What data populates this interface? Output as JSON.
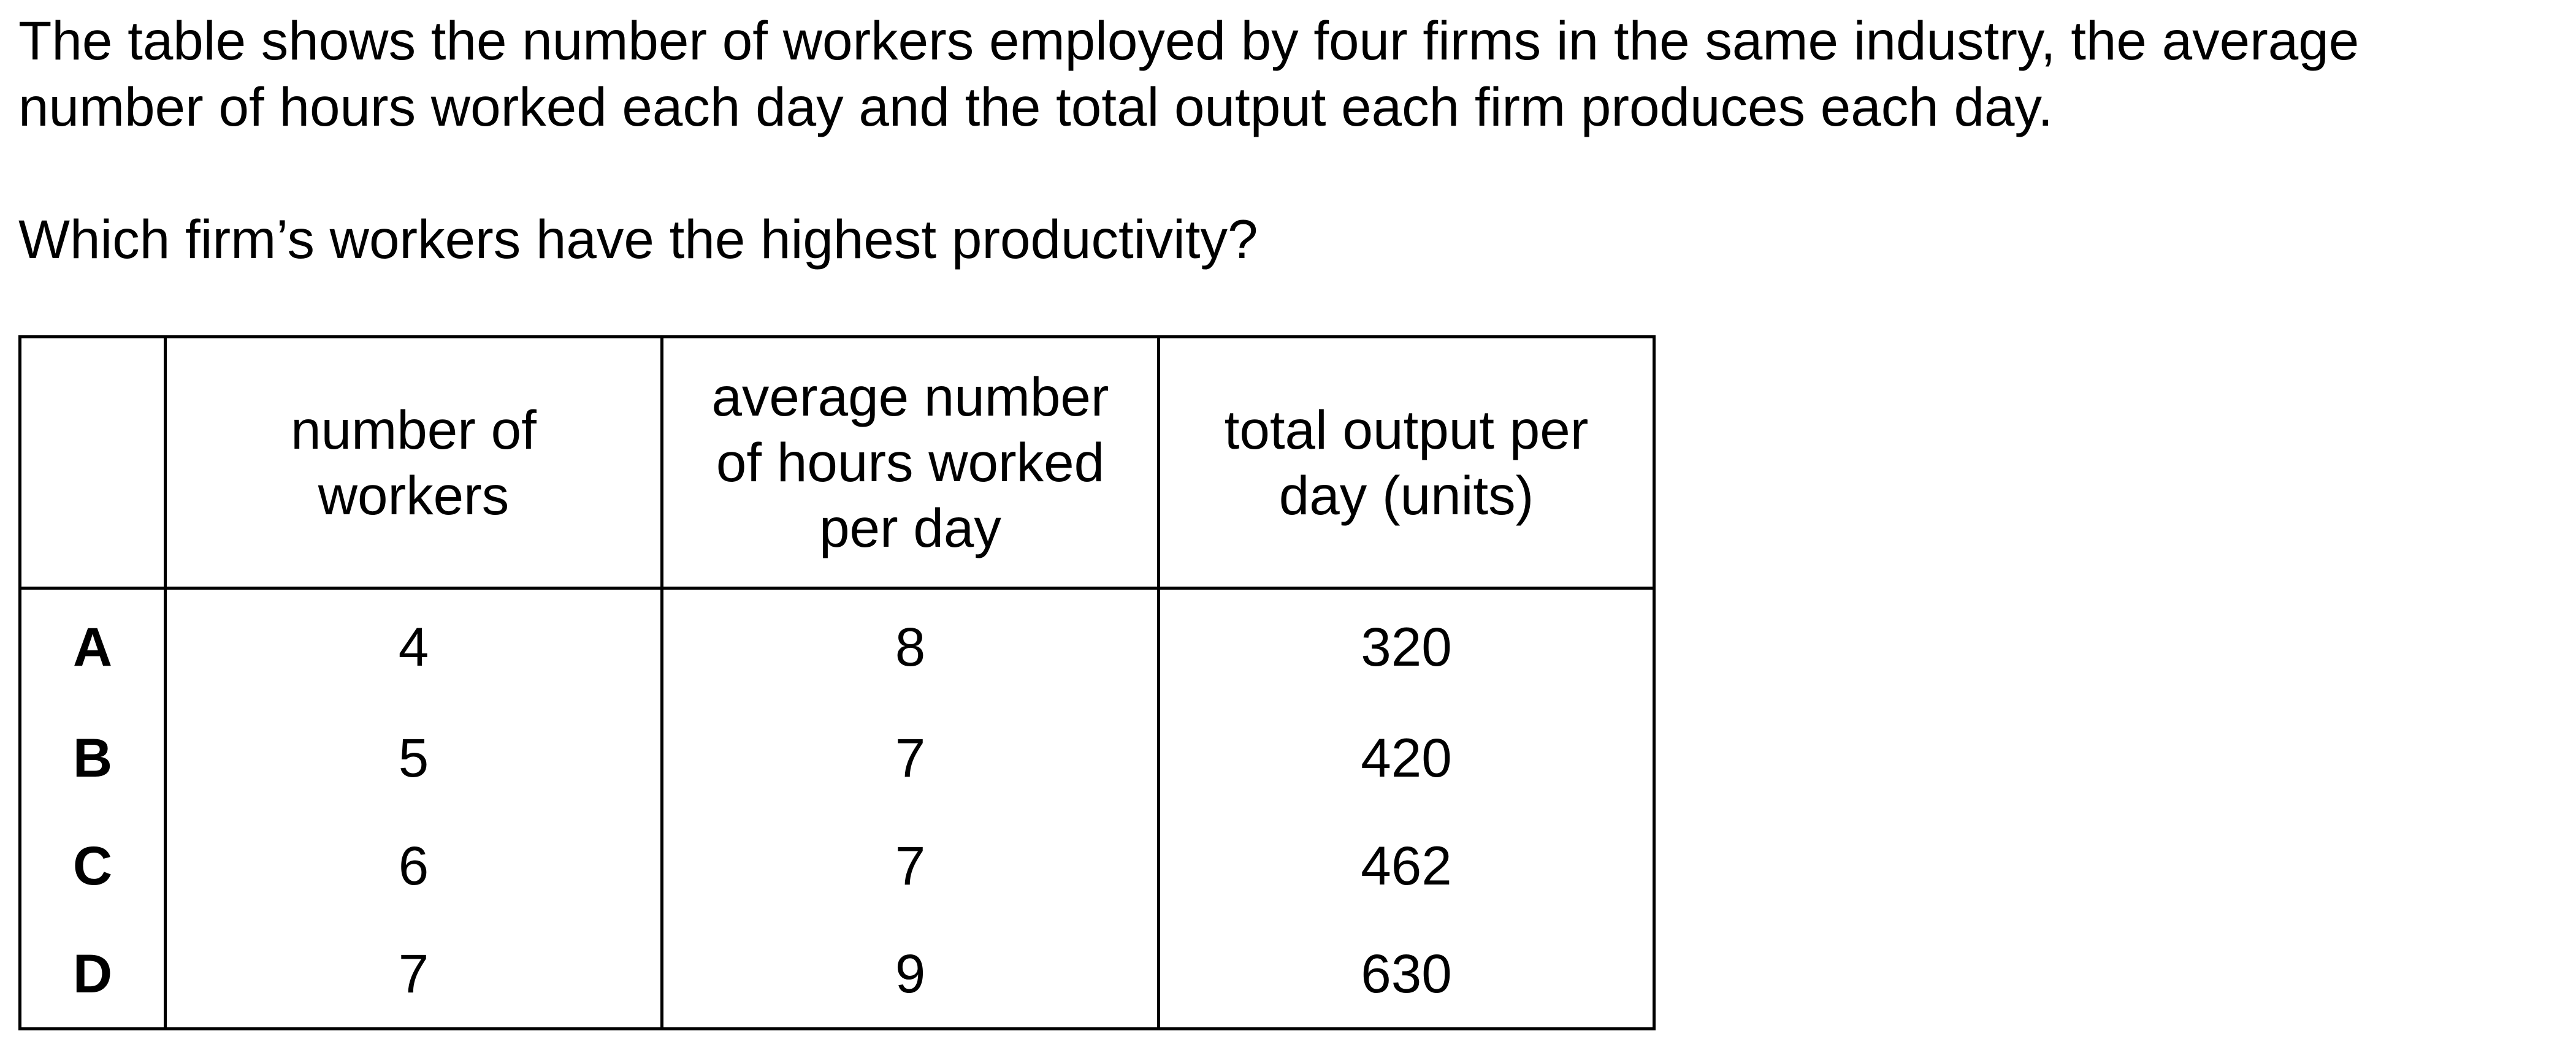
{
  "question": {
    "stem": "The table shows the number of workers employed by four firms in the same industry, the average number of hours worked each day and the total output each firm produces each day.",
    "prompt": "Which firm’s workers have the highest productivity?"
  },
  "table": {
    "headers": [
      "",
      "number of workers",
      "average number of hours worked per day",
      "total output per day (units)"
    ],
    "rows": [
      {
        "label": "A",
        "workers": "4",
        "hours": "8",
        "output": "320"
      },
      {
        "label": "B",
        "workers": "5",
        "hours": "7",
        "output": "420"
      },
      {
        "label": "C",
        "workers": "6",
        "hours": "7",
        "output": "462"
      },
      {
        "label": "D",
        "workers": "7",
        "hours": "9",
        "output": "630"
      }
    ]
  }
}
